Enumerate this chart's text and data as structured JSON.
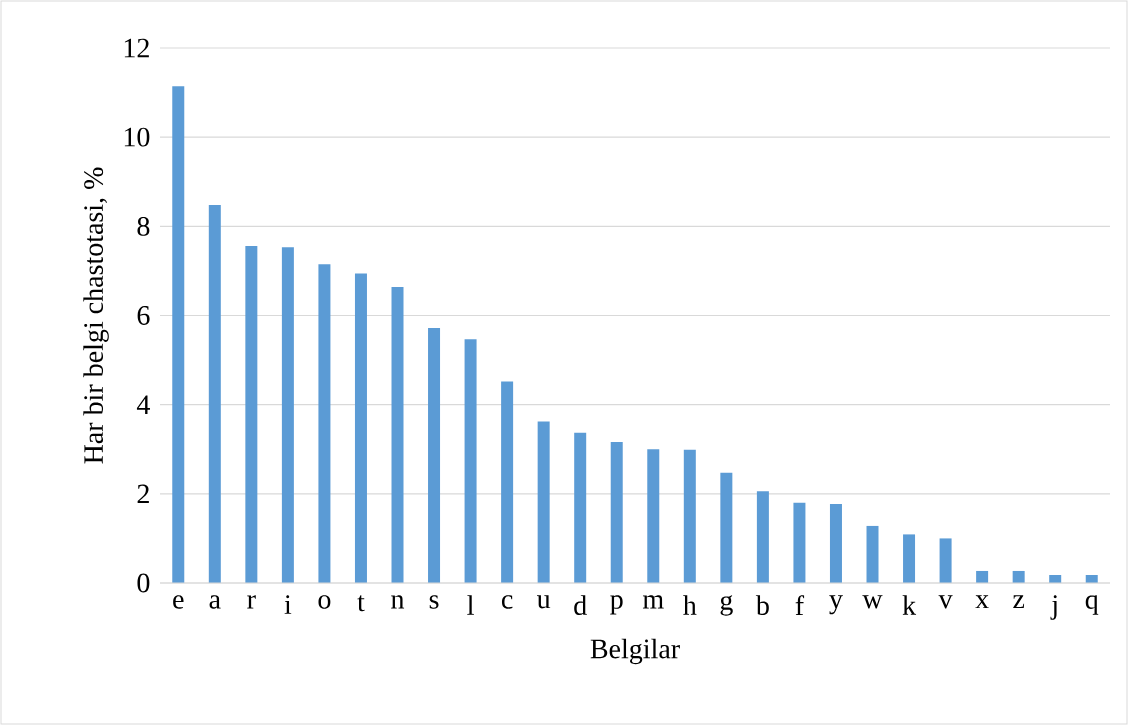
{
  "chart_data": {
    "type": "bar",
    "xlabel": "Belgilar",
    "ylabel": "Har bir belgi chastotasi, %",
    "categories": [
      "e",
      "a",
      "r",
      "i",
      "o",
      "t",
      "n",
      "s",
      "l",
      "c",
      "u",
      "d",
      "p",
      "m",
      "h",
      "g",
      "b",
      "f",
      "y",
      "w",
      "k",
      "v",
      "x",
      "z",
      "j",
      "q"
    ],
    "values": [
      11.14,
      8.48,
      7.56,
      7.53,
      7.15,
      6.94,
      6.64,
      5.72,
      5.47,
      4.52,
      3.62,
      3.37,
      3.16,
      3.0,
      2.99,
      2.47,
      2.06,
      1.8,
      1.77,
      1.28,
      1.09,
      1.0,
      0.27,
      0.27,
      0.18,
      0.18
    ],
    "color": "#5b9bd5",
    "ylim": [
      0,
      12
    ],
    "yticks": [
      0,
      2,
      4,
      6,
      8,
      10,
      12
    ],
    "grid": "y"
  }
}
